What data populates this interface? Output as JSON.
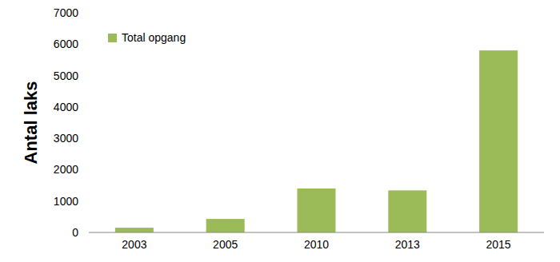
{
  "chart_data": {
    "type": "bar",
    "y_label": "Antal laks",
    "categories": [
      "2003",
      "2005",
      "2010",
      "2013",
      "2015"
    ],
    "series": [
      {
        "name": "Total opgang",
        "color": "#9bbb59",
        "values": [
          150,
          430,
          1400,
          1340,
          5800
        ]
      }
    ],
    "ylim": [
      0,
      7000
    ],
    "yticks": [
      0,
      1000,
      2000,
      3000,
      4000,
      5000,
      6000,
      7000
    ],
    "grid": false,
    "legend": "top-left"
  }
}
